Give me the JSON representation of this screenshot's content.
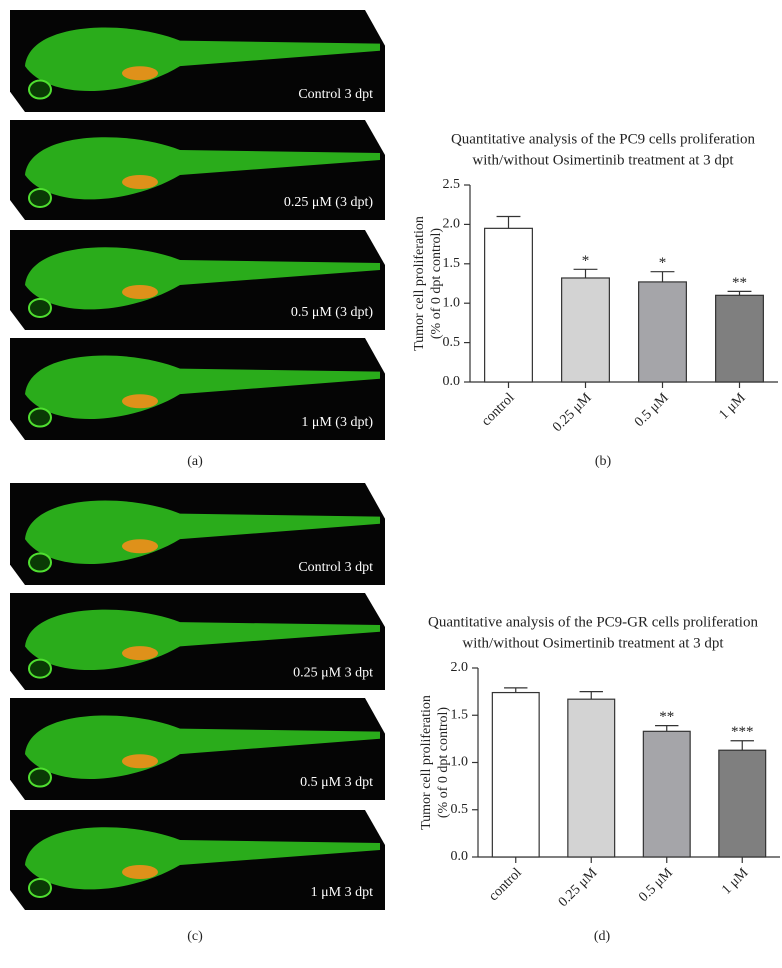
{
  "panel_labels": [
    "(a)",
    "(b)",
    "(c)",
    "(d)"
  ],
  "image_labels_a": [
    "Control 3 dpt",
    "0.25 μM (3 dpt)",
    "0.5 μM (3 dpt)",
    "1 μM (3 dpt)"
  ],
  "image_labels_c": [
    "Control 3 dpt",
    "0.25 μM 3 dpt",
    "0.5 μM 3 dpt",
    "1 μM 3 dpt"
  ],
  "chart_data": [
    {
      "type": "bar",
      "title": [
        "Quantitative analysis of the PC9 cells proliferation",
        "with/without Osimertinib treatment at 3 dpt"
      ],
      "ylabel": [
        "Tumor cell proliferation",
        "(% of 0 dpt control)"
      ],
      "categories": [
        "control",
        "0.25 μM",
        "0.5 μM",
        "1 μM"
      ],
      "values": [
        1.95,
        1.32,
        1.27,
        1.1
      ],
      "errors": [
        0.15,
        0.11,
        0.13,
        0.05
      ],
      "significance": [
        null,
        "*",
        "*",
        "**"
      ],
      "colors": [
        "#ffffff",
        "#d3d3d3",
        "#a5a5a9",
        "#7f7f7f"
      ],
      "ylim": [
        0,
        2.5
      ],
      "yticks": [
        {
          "value": 0,
          "label": "0.0"
        },
        0.5,
        {
          "value": 1,
          "label": "1.0"
        },
        1.5,
        {
          "value": 2,
          "label": "2.0"
        },
        2.5
      ]
    },
    {
      "type": "bar",
      "title": [
        "Quantitative analysis of the PC9-GR cells proliferation",
        "with/without Osimertinib treatment at 3 dpt"
      ],
      "ylabel": [
        "Tumor cell proliferation",
        "(% of 0 dpt control)"
      ],
      "categories": [
        "control",
        "0.25 μM",
        "0.5 μM",
        "1 μM"
      ],
      "values": [
        1.74,
        1.67,
        1.33,
        1.13
      ],
      "errors": [
        0.05,
        0.08,
        0.06,
        0.1
      ],
      "significance": [
        null,
        null,
        "**",
        "***"
      ],
      "colors": [
        "#ffffff",
        "#d3d3d3",
        "#a5a5a9",
        "#7f7f7f"
      ],
      "ylim": [
        0,
        2
      ],
      "yticks": [
        {
          "value": 0,
          "label": "0.0"
        },
        0.5,
        {
          "value": 1,
          "label": "1.0"
        },
        1.5,
        {
          "value": 2,
          "label": "2.0"
        }
      ]
    }
  ]
}
